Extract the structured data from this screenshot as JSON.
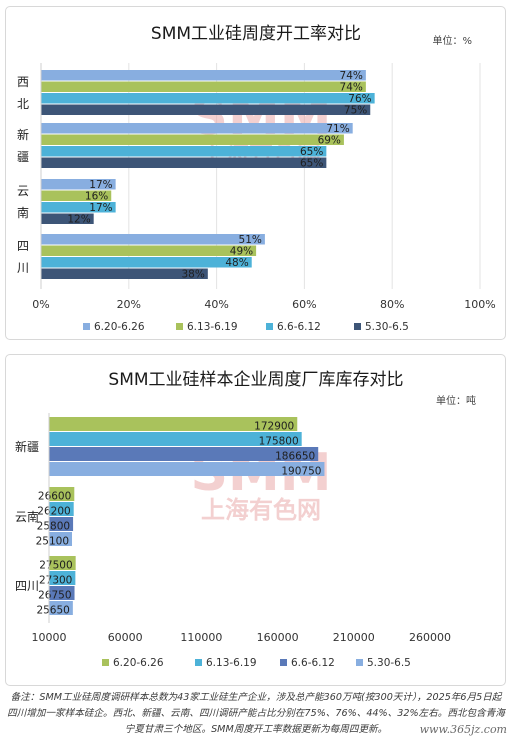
{
  "chart_data": [
    {
      "type": "bar",
      "orientation": "horizontal",
      "title": "SMM工业硅周度开工率对比",
      "unit_label": "单位：%",
      "categories": [
        [
          "西",
          "北"
        ],
        [
          "新",
          "疆"
        ],
        [
          "云",
          "南"
        ],
        [
          "四",
          "川"
        ]
      ],
      "series": [
        {
          "name": "6.20-6.26",
          "color": "#88aee0",
          "values": [
            74,
            71,
            17,
            51
          ],
          "labels": [
            "74%",
            "71%",
            "17%",
            "51%"
          ]
        },
        {
          "name": "6.13-6.19",
          "color": "#a9c25c",
          "values": [
            74,
            69,
            16,
            49
          ],
          "labels": [
            "74%",
            "69%",
            "16%",
            "49%"
          ]
        },
        {
          "name": "6.6-6.12",
          "color": "#4db2d8",
          "values": [
            76,
            65,
            17,
            48
          ],
          "labels": [
            "76%",
            "65%",
            "17%",
            "48%"
          ]
        },
        {
          "name": "5.30-6.5",
          "color": "#3d5577",
          "values": [
            75,
            65,
            12,
            38
          ],
          "labels": [
            "75%",
            "65%",
            "12%",
            "38%"
          ]
        }
      ],
      "xlim": [
        0,
        100
      ],
      "xticks": [
        0,
        20,
        40,
        60,
        80,
        100
      ],
      "xtick_labels": [
        "0%",
        "20%",
        "40%",
        "60%",
        "80%",
        "100%"
      ],
      "legend": "bottom",
      "grid": true
    },
    {
      "type": "bar",
      "orientation": "horizontal",
      "title": "SMM工业硅样本企业周度厂库库存对比",
      "unit_label": "单位：吨",
      "categories": [
        [
          "新疆"
        ],
        [
          "云南"
        ],
        [
          "四川"
        ]
      ],
      "series": [
        {
          "name": "6.20-6.26",
          "color": "#a9c25c",
          "values": [
            172900,
            26600,
            27500
          ],
          "labels": [
            "172900",
            "26600",
            "27500"
          ]
        },
        {
          "name": "6.13-6.19",
          "color": "#4db2d8",
          "values": [
            175800,
            26200,
            27300
          ],
          "labels": [
            "175800",
            "26200",
            "27300"
          ]
        },
        {
          "name": "6.6-6.12",
          "color": "#5a79b8",
          "values": [
            186650,
            25800,
            26750
          ],
          "labels": [
            "186650",
            "25800",
            "26750"
          ]
        },
        {
          "name": "5.30-6.5",
          "color": "#88aee0",
          "values": [
            190750,
            25100,
            25650
          ],
          "labels": [
            "190750",
            "25100",
            "25650"
          ]
        }
      ],
      "xlim": [
        10000,
        260000
      ],
      "xticks": [
        10000,
        60000,
        110000,
        160000,
        210000,
        260000
      ],
      "xtick_labels": [
        "10000",
        "60000",
        "110000",
        "160000",
        "210000",
        "260000"
      ],
      "legend": "bottom",
      "grid": false
    }
  ],
  "watermark": {
    "logo_text": "SMM",
    "logo_subtext": "上海有色网",
    "color": "#e9a9a9"
  },
  "footnote": "备注：SMM工业硅周度调研样本总数为43家工业硅生产企业，涉及总产能360万吨(按300天计），2025年6月5日起四川增加一家样本硅企。西北、新疆、云南、四川调研产能占比分别在75%、76%、44%、32%左右。西北包含青海宁夏甘肃三个地区。SMM周度开工率数据更新为每周四更新。",
  "site_watermark": "www.365jz.com"
}
